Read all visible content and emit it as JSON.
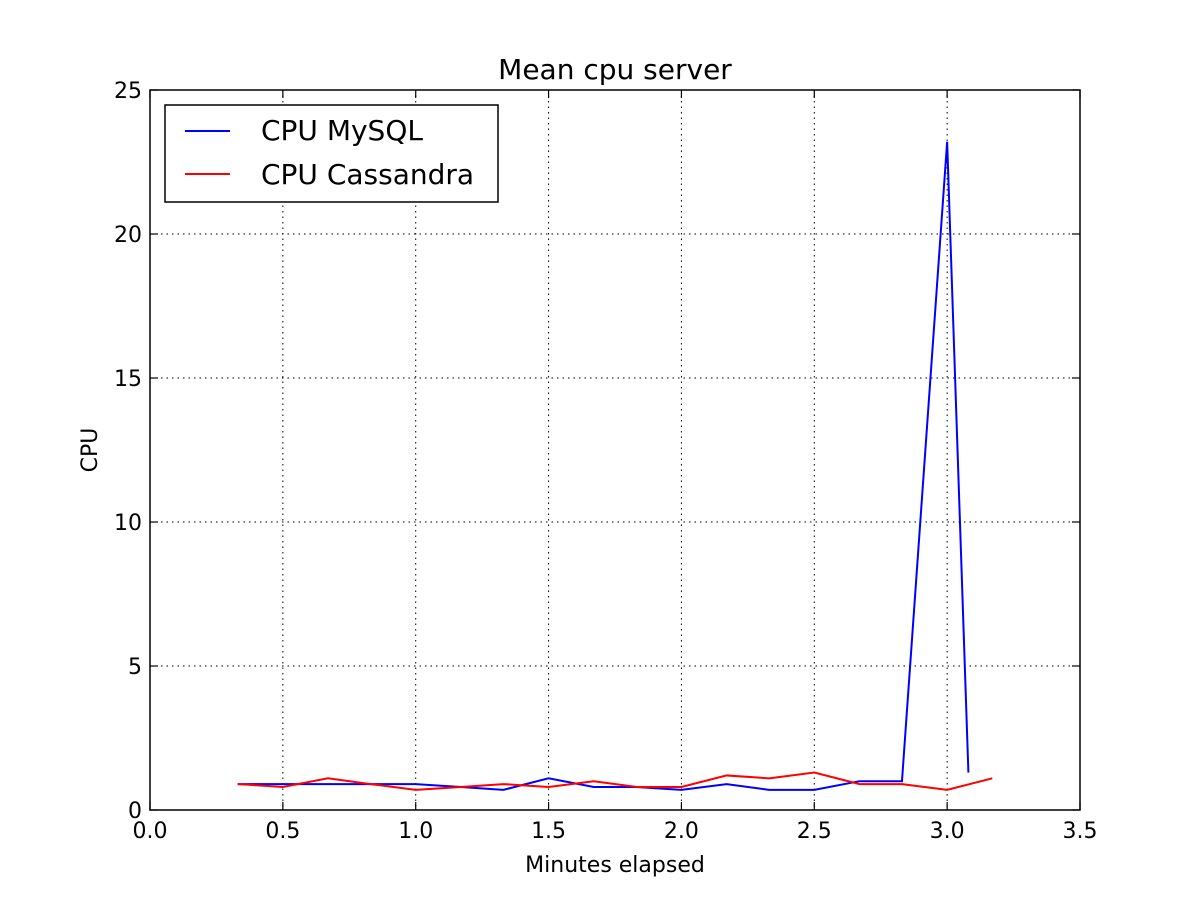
{
  "chart_data": {
    "type": "line",
    "title": "Mean cpu server",
    "xlabel": "Minutes elapsed",
    "ylabel": "CPU",
    "xlim": [
      0,
      3.5
    ],
    "ylim": [
      0,
      25
    ],
    "xticks": [
      0.0,
      0.5,
      1.0,
      1.5,
      2.0,
      2.5,
      3.0,
      3.5
    ],
    "xtick_labels": [
      "0.0",
      "0.5",
      "1.0",
      "1.5",
      "2.0",
      "2.5",
      "3.0",
      "3.5"
    ],
    "yticks": [
      0,
      5,
      10,
      15,
      20,
      25
    ],
    "ytick_labels": [
      "0",
      "5",
      "10",
      "15",
      "20",
      "25"
    ],
    "grid": true,
    "legend_position": "top-left",
    "series": [
      {
        "name": "CPU MySQL",
        "color": "#0000ff",
        "x": [
          0.33,
          0.5,
          0.67,
          0.83,
          1.0,
          1.17,
          1.33,
          1.5,
          1.67,
          1.83,
          2.0,
          2.17,
          2.33,
          2.5,
          2.67,
          2.83,
          3.0,
          3.08
        ],
        "y": [
          0.9,
          0.9,
          0.9,
          0.9,
          0.9,
          0.8,
          0.7,
          1.1,
          0.8,
          0.8,
          0.7,
          0.9,
          0.7,
          0.7,
          1.0,
          1.0,
          23.2,
          1.3
        ]
      },
      {
        "name": "CPU Cassandra",
        "color": "#ff0000",
        "x": [
          0.33,
          0.5,
          0.67,
          0.83,
          1.0,
          1.17,
          1.33,
          1.5,
          1.67,
          1.83,
          2.0,
          2.17,
          2.33,
          2.5,
          2.67,
          2.83,
          3.0,
          3.17
        ],
        "y": [
          0.9,
          0.8,
          1.1,
          0.9,
          0.7,
          0.8,
          0.9,
          0.8,
          1.0,
          0.8,
          0.8,
          1.2,
          1.1,
          1.3,
          0.9,
          0.9,
          0.7,
          1.1
        ]
      }
    ]
  }
}
